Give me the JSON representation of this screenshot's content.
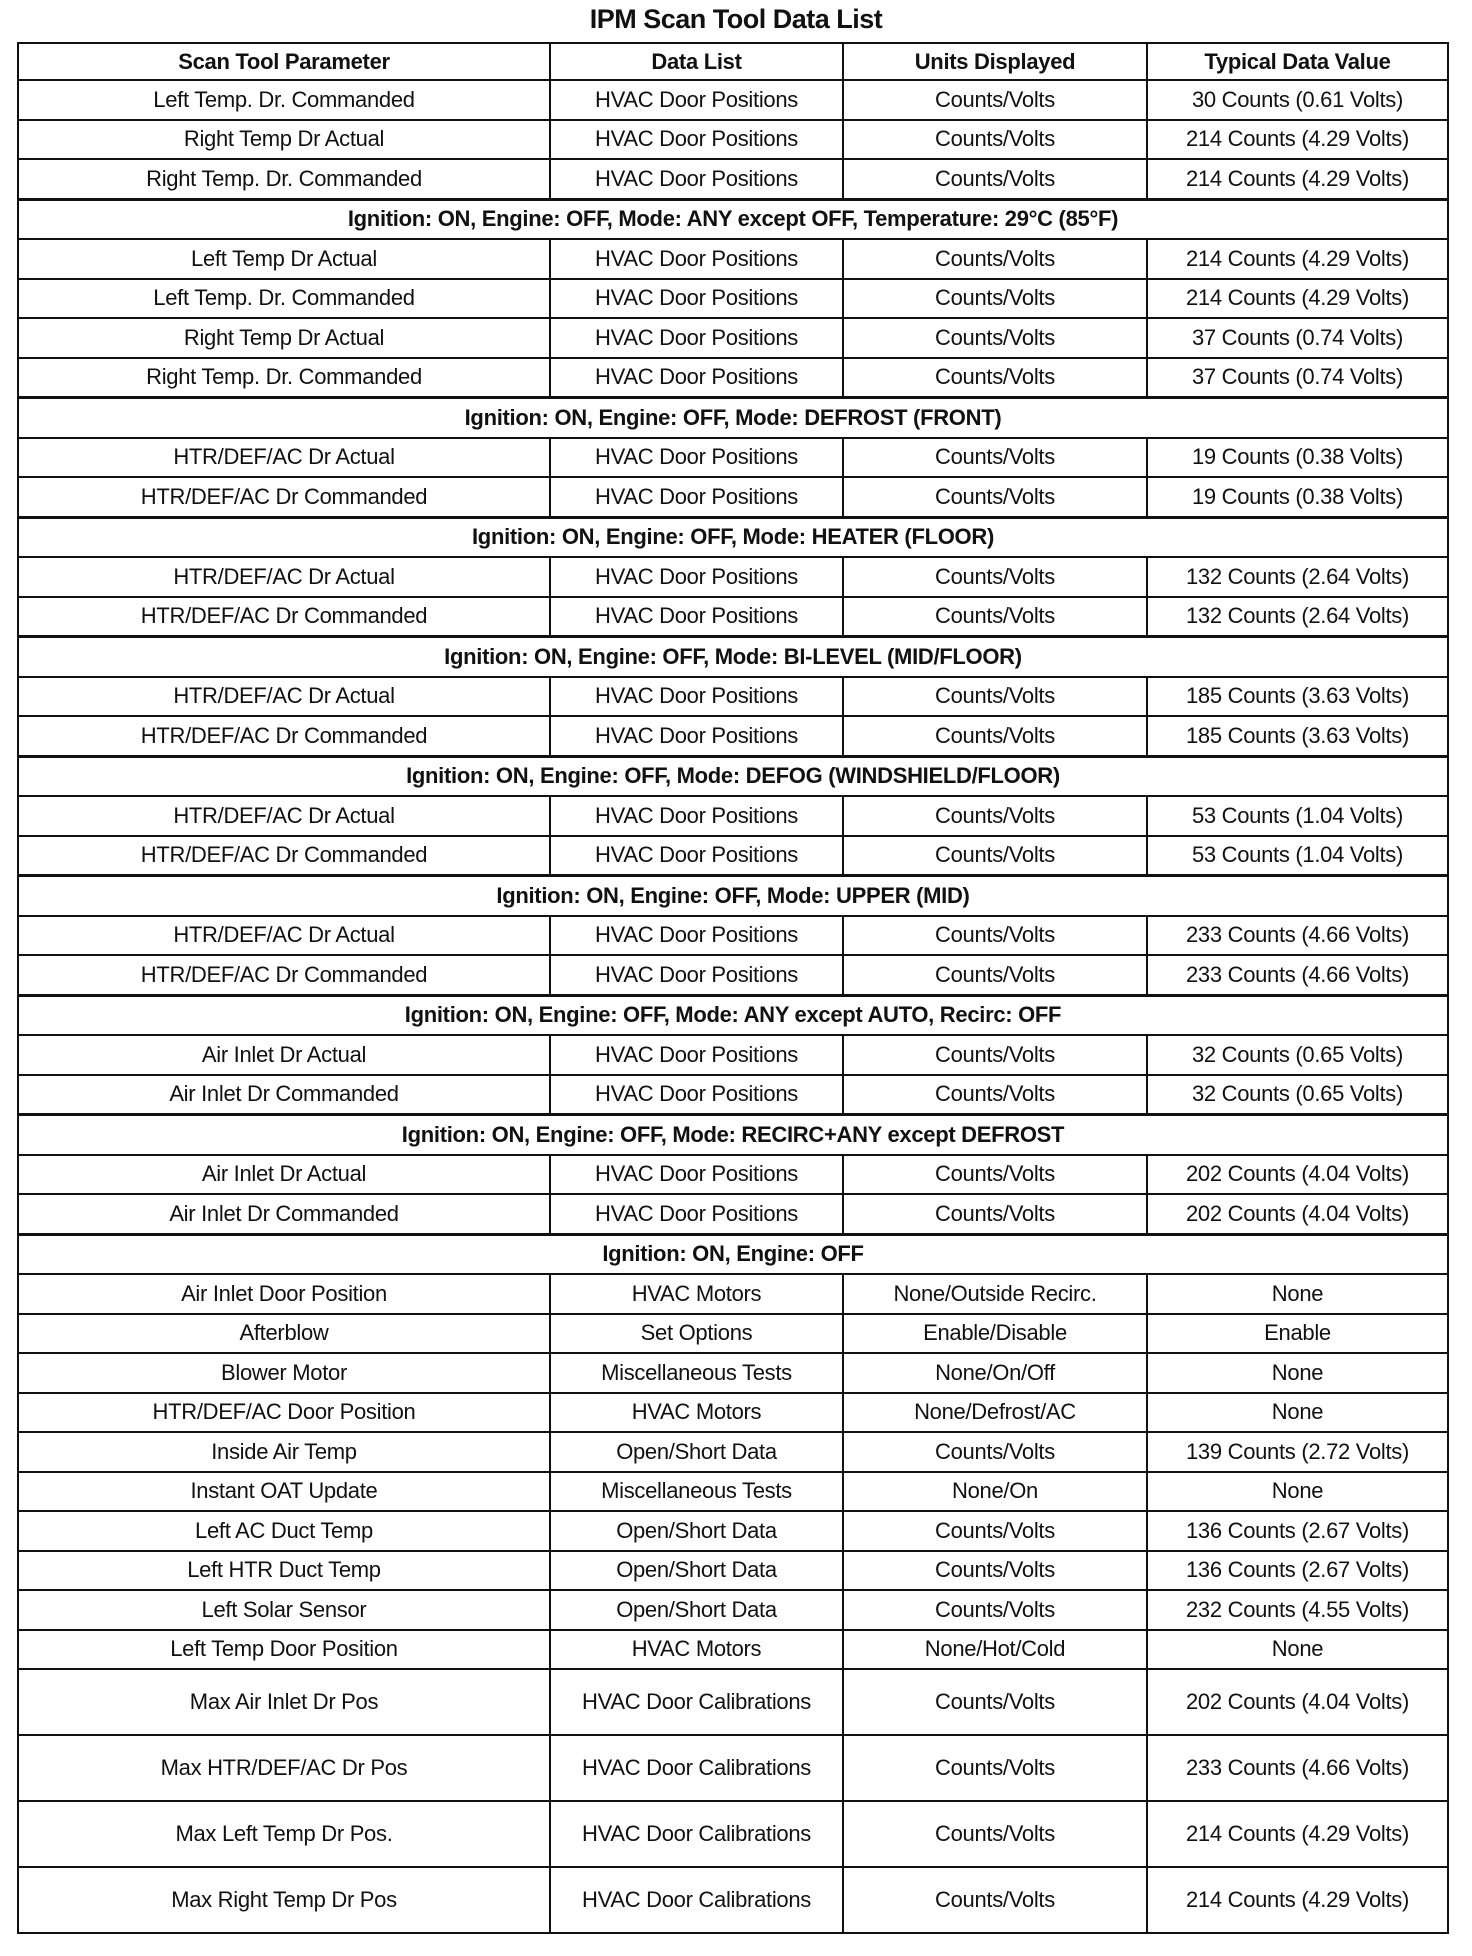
{
  "title": "IPM Scan Tool Data List",
  "headers": [
    "Scan Tool Parameter",
    "Data List",
    "Units Displayed",
    "Typical Data Value"
  ],
  "rows": [
    {
      "type": "data",
      "cells": [
        "Left Temp. Dr. Commanded",
        "HVAC Door Positions",
        "Counts/Volts",
        "30 Counts (0.61 Volts)"
      ]
    },
    {
      "type": "data",
      "cells": [
        "Right Temp Dr Actual",
        "HVAC Door Positions",
        "Counts/Volts",
        "214 Counts (4.29 Volts)"
      ]
    },
    {
      "type": "data",
      "cells": [
        "Right Temp. Dr. Commanded",
        "HVAC Door Positions",
        "Counts/Volts",
        "214 Counts (4.29 Volts)"
      ]
    },
    {
      "type": "section",
      "text": "Ignition: ON, Engine: OFF, Mode: ANY except OFF, Temperature: 29°C (85°F)"
    },
    {
      "type": "data",
      "cells": [
        "Left Temp Dr Actual",
        "HVAC Door Positions",
        "Counts/Volts",
        "214 Counts (4.29 Volts)"
      ]
    },
    {
      "type": "data",
      "cells": [
        "Left Temp. Dr. Commanded",
        "HVAC Door Positions",
        "Counts/Volts",
        "214 Counts (4.29 Volts)"
      ]
    },
    {
      "type": "data",
      "cells": [
        "Right Temp Dr Actual",
        "HVAC Door Positions",
        "Counts/Volts",
        "37 Counts (0.74 Volts)"
      ]
    },
    {
      "type": "data",
      "cells": [
        "Right Temp. Dr. Commanded",
        "HVAC Door Positions",
        "Counts/Volts",
        "37 Counts (0.74 Volts)"
      ]
    },
    {
      "type": "section",
      "text": "Ignition: ON, Engine: OFF, Mode: DEFROST (FRONT)"
    },
    {
      "type": "data",
      "cells": [
        "HTR/DEF/AC Dr Actual",
        "HVAC Door Positions",
        "Counts/Volts",
        "19 Counts (0.38 Volts)"
      ]
    },
    {
      "type": "data",
      "cells": [
        "HTR/DEF/AC Dr Commanded",
        "HVAC Door Positions",
        "Counts/Volts",
        "19 Counts (0.38 Volts)"
      ]
    },
    {
      "type": "section",
      "text": "Ignition: ON, Engine: OFF, Mode: HEATER (FLOOR)"
    },
    {
      "type": "data",
      "cells": [
        "HTR/DEF/AC Dr Actual",
        "HVAC Door Positions",
        "Counts/Volts",
        "132 Counts (2.64 Volts)"
      ]
    },
    {
      "type": "data",
      "cells": [
        "HTR/DEF/AC Dr Commanded",
        "HVAC Door Positions",
        "Counts/Volts",
        "132 Counts (2.64 Volts)"
      ]
    },
    {
      "type": "section",
      "text": "Ignition: ON, Engine: OFF, Mode: BI-LEVEL (MID/FLOOR)"
    },
    {
      "type": "data",
      "cells": [
        "HTR/DEF/AC Dr Actual",
        "HVAC Door Positions",
        "Counts/Volts",
        "185 Counts (3.63 Volts)"
      ]
    },
    {
      "type": "data",
      "cells": [
        "HTR/DEF/AC Dr Commanded",
        "HVAC Door Positions",
        "Counts/Volts",
        "185 Counts (3.63 Volts)"
      ]
    },
    {
      "type": "section",
      "text": "Ignition: ON, Engine: OFF, Mode: DEFOG (WINDSHIELD/FLOOR)"
    },
    {
      "type": "data",
      "cells": [
        "HTR/DEF/AC Dr Actual",
        "HVAC Door Positions",
        "Counts/Volts",
        "53 Counts (1.04 Volts)"
      ]
    },
    {
      "type": "data",
      "cells": [
        "HTR/DEF/AC Dr Commanded",
        "HVAC Door Positions",
        "Counts/Volts",
        "53 Counts (1.04 Volts)"
      ]
    },
    {
      "type": "section",
      "text": "Ignition: ON, Engine: OFF, Mode: UPPER (MID)"
    },
    {
      "type": "data",
      "cells": [
        "HTR/DEF/AC Dr Actual",
        "HVAC Door Positions",
        "Counts/Volts",
        "233 Counts (4.66 Volts)"
      ]
    },
    {
      "type": "data",
      "cells": [
        "HTR/DEF/AC Dr Commanded",
        "HVAC Door Positions",
        "Counts/Volts",
        "233 Counts (4.66 Volts)"
      ]
    },
    {
      "type": "section",
      "text": "Ignition: ON, Engine: OFF, Mode: ANY except AUTO, Recirc: OFF"
    },
    {
      "type": "data",
      "cells": [
        "Air Inlet Dr Actual",
        "HVAC Door Positions",
        "Counts/Volts",
        "32 Counts (0.65 Volts)"
      ]
    },
    {
      "type": "data",
      "cells": [
        "Air Inlet Dr Commanded",
        "HVAC Door Positions",
        "Counts/Volts",
        "32 Counts (0.65 Volts)"
      ]
    },
    {
      "type": "section",
      "text": "Ignition: ON, Engine: OFF, Mode: RECIRC+ANY except DEFROST"
    },
    {
      "type": "data",
      "cells": [
        "Air Inlet Dr Actual",
        "HVAC Door Positions",
        "Counts/Volts",
        "202 Counts (4.04 Volts)"
      ]
    },
    {
      "type": "data",
      "cells": [
        "Air Inlet Dr Commanded",
        "HVAC Door Positions",
        "Counts/Volts",
        "202 Counts (4.04 Volts)"
      ]
    },
    {
      "type": "section",
      "text": "Ignition: ON, Engine: OFF"
    },
    {
      "type": "data",
      "cells": [
        "Air Inlet Door Position",
        "HVAC Motors",
        "None/Outside Recirc.",
        "None"
      ]
    },
    {
      "type": "data",
      "cells": [
        "Afterblow",
        "Set Options",
        "Enable/Disable",
        "Enable"
      ]
    },
    {
      "type": "data",
      "cells": [
        "Blower Motor",
        "Miscellaneous Tests",
        "None/On/Off",
        "None"
      ]
    },
    {
      "type": "data",
      "cells": [
        "HTR/DEF/AC Door Position",
        "HVAC Motors",
        "None/Defrost/AC",
        "None"
      ]
    },
    {
      "type": "data",
      "cells": [
        "Inside Air Temp",
        "Open/Short Data",
        "Counts/Volts",
        "139 Counts (2.72 Volts)"
      ]
    },
    {
      "type": "data",
      "cells": [
        "Instant OAT Update",
        "Miscellaneous Tests",
        "None/On",
        "None"
      ]
    },
    {
      "type": "data",
      "cells": [
        "Left AC Duct Temp",
        "Open/Short Data",
        "Counts/Volts",
        "136 Counts (2.67 Volts)"
      ]
    },
    {
      "type": "data",
      "cells": [
        "Left HTR Duct Temp",
        "Open/Short Data",
        "Counts/Volts",
        "136 Counts (2.67 Volts)"
      ]
    },
    {
      "type": "data",
      "cells": [
        "Left Solar Sensor",
        "Open/Short Data",
        "Counts/Volts",
        "232 Counts (4.55 Volts)"
      ]
    },
    {
      "type": "data",
      "cells": [
        "Left Temp Door Position",
        "HVAC Motors",
        "None/Hot/Cold",
        "None"
      ]
    },
    {
      "type": "tall",
      "cells": [
        "Max Air Inlet Dr Pos",
        "HVAC Door Calibrations",
        "Counts/Volts",
        "202 Counts (4.04 Volts)"
      ]
    },
    {
      "type": "tall",
      "cells": [
        "Max HTR/DEF/AC Dr Pos",
        "HVAC Door Calibrations",
        "Counts/Volts",
        "233 Counts (4.66 Volts)"
      ]
    },
    {
      "type": "tall",
      "cells": [
        "Max Left Temp Dr Pos.",
        "HVAC Door Calibrations",
        "Counts/Volts",
        "214 Counts (4.29 Volts)"
      ]
    },
    {
      "type": "tall",
      "cells": [
        "Max Right Temp Dr Pos",
        "HVAC Door Calibrations",
        "Counts/Volts",
        "214 Counts (4.29 Volts)"
      ]
    }
  ]
}
